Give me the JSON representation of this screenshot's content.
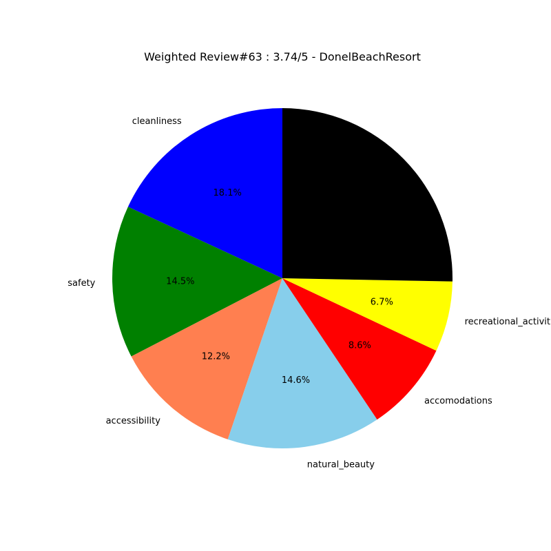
{
  "chart_data": {
    "type": "pie",
    "title": "Weighted Review#63 : 3.74/5 - DonelBeachResort",
    "start_angle_deg": 90,
    "direction": "counterclockwise",
    "slices": [
      {
        "label": "cleanliness",
        "value": 18.1,
        "pct_label": "18.1%",
        "color": "#0000ff"
      },
      {
        "label": "safety",
        "value": 14.5,
        "pct_label": "14.5%",
        "color": "#008000"
      },
      {
        "label": "accessibility",
        "value": 12.2,
        "pct_label": "12.2%",
        "color": "#ff7f50"
      },
      {
        "label": "natural_beauty",
        "value": 14.6,
        "pct_label": "14.6%",
        "color": "#87ceeb"
      },
      {
        "label": "accomodations",
        "value": 8.6,
        "pct_label": "8.6%",
        "color": "#ff0000"
      },
      {
        "label": "recreational_activities",
        "value": 6.7,
        "pct_label": "6.7%",
        "color": "#ffff00"
      },
      {
        "label": "",
        "value": 25.3,
        "pct_label": "",
        "color": "#000000"
      }
    ]
  }
}
